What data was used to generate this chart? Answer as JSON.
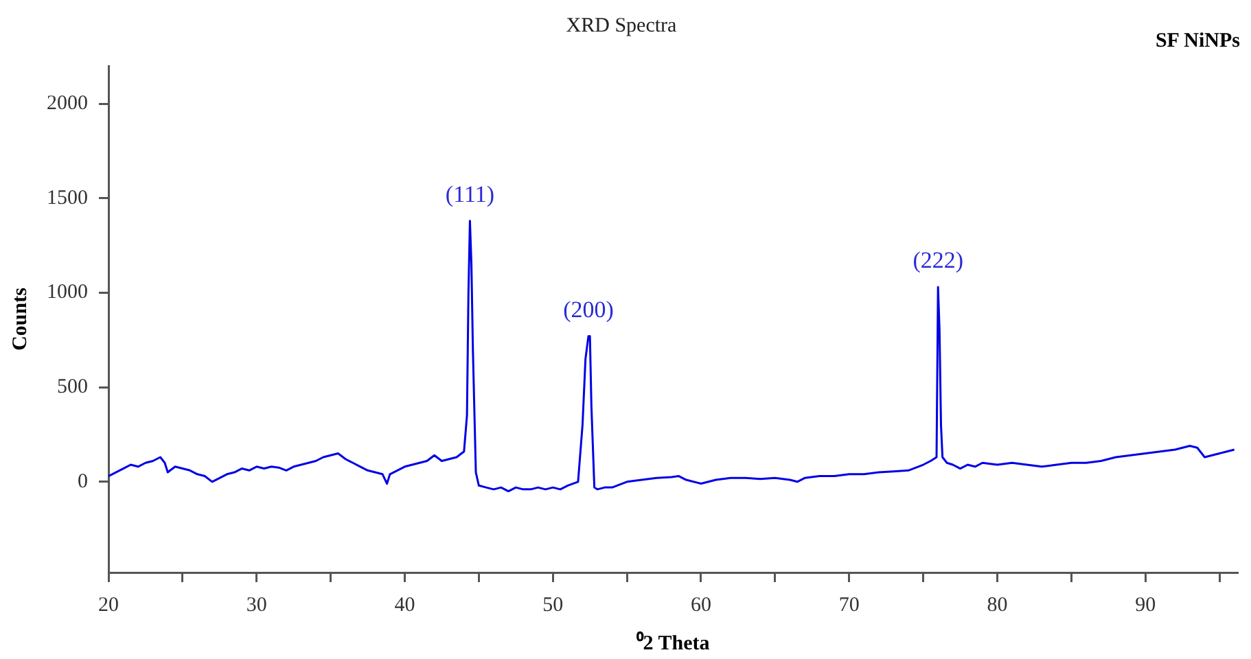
{
  "chart_data": {
    "type": "line",
    "title": "XRD Spectra",
    "xlabel": "⁰2 Theta",
    "ylabel": "Counts",
    "xlim": [
      20,
      96.2
    ],
    "ylim": [
      -480,
      2200
    ],
    "xticks": [
      20,
      {
        "value": 25,
        "label": null
      },
      30,
      {
        "value": 35,
        "label": null
      },
      40,
      {
        "value": 45,
        "label": null
      },
      50,
      {
        "value": 55,
        "label": null
      },
      60,
      {
        "value": 65,
        "label": null
      },
      70,
      {
        "value": 75,
        "label": null
      },
      80,
      {
        "value": 85,
        "label": null
      },
      90,
      {
        "value": 95,
        "label": null
      }
    ],
    "yticks": [
      0,
      500,
      1000,
      1500,
      2000
    ],
    "grid": false,
    "legend": false,
    "marker": "none",
    "line_style": "solid",
    "annotations": [
      "SF NiNPs",
      {
        "text": "(111)",
        "x": 44.4,
        "y": 1380
      },
      {
        "text": "(200)",
        "x": 52.4,
        "y": 770
      },
      {
        "text": "(222)",
        "x": 76.0,
        "y": 1030
      }
    ],
    "series": [
      {
        "color": "#0000e6",
        "x": [
          20,
          20.5,
          21,
          21.5,
          22,
          22.5,
          23,
          23.5,
          23.8,
          24,
          24.5,
          25,
          25.5,
          26,
          26.5,
          27,
          27.5,
          28,
          28.5,
          29,
          29.5,
          30,
          30.5,
          31,
          31.5,
          32,
          32.5,
          33,
          33.5,
          34,
          34.5,
          35,
          35.5,
          36,
          36.5,
          37,
          37.5,
          38,
          38.5,
          38.8,
          39,
          39.5,
          40,
          40.5,
          41,
          41.5,
          42,
          42.5,
          43,
          43.5,
          44,
          44.2,
          44.3,
          44.4,
          44.5,
          44.6,
          44.8,
          45,
          45.5,
          46,
          46.5,
          47,
          47.5,
          48,
          48.5,
          49,
          49.5,
          50,
          50.5,
          51,
          51.7,
          52,
          52.2,
          52.4,
          52.5,
          52.6,
          52.8,
          53,
          53.5,
          54,
          55,
          56,
          57,
          58,
          58.5,
          59,
          60,
          60.5,
          61,
          62,
          63,
          64,
          65,
          66,
          66.5,
          67,
          68,
          69,
          70,
          71,
          72,
          73,
          74,
          75,
          75.5,
          75.9,
          76.0,
          76.1,
          76.2,
          76.3,
          76.6,
          77,
          77.5,
          78,
          78.5,
          79,
          80,
          81,
          82,
          83,
          84,
          85,
          86,
          87,
          88,
          89,
          90,
          91,
          92,
          93,
          93.5,
          94,
          94.5,
          95,
          95.5,
          96
        ],
        "values": [
          30,
          50,
          70,
          90,
          80,
          100,
          110,
          130,
          100,
          50,
          80,
          70,
          60,
          40,
          30,
          0,
          20,
          40,
          50,
          70,
          60,
          80,
          70,
          80,
          75,
          60,
          80,
          90,
          100,
          110,
          130,
          140,
          150,
          120,
          100,
          80,
          60,
          50,
          40,
          -10,
          40,
          60,
          80,
          90,
          100,
          110,
          140,
          110,
          120,
          130,
          160,
          350,
          1000,
          1380,
          1150,
          700,
          50,
          -20,
          -30,
          -40,
          -30,
          -50,
          -30,
          -40,
          -40,
          -30,
          -40,
          -30,
          -40,
          -20,
          0,
          300,
          650,
          770,
          770,
          400,
          -30,
          -40,
          -30,
          -30,
          0,
          10,
          20,
          25,
          30,
          10,
          -10,
          0,
          10,
          20,
          20,
          15,
          20,
          10,
          0,
          20,
          30,
          30,
          40,
          40,
          50,
          55,
          60,
          90,
          110,
          130,
          1030,
          800,
          300,
          130,
          100,
          90,
          70,
          90,
          80,
          100,
          90,
          100,
          90,
          80,
          90,
          100,
          100,
          110,
          130,
          140,
          150,
          160,
          170,
          190,
          180,
          130,
          140,
          150,
          160,
          170
        ]
      }
    ]
  }
}
